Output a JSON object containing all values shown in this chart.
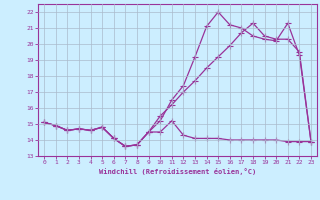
{
  "xlabel": "Windchill (Refroidissement éolien,°C)",
  "background_color": "#cceeff",
  "grid_color": "#aabbcc",
  "line_color": "#993399",
  "xlim": [
    -0.5,
    23.5
  ],
  "ylim": [
    13,
    22.5
  ],
  "xticks": [
    0,
    1,
    2,
    3,
    4,
    5,
    6,
    7,
    8,
    9,
    10,
    11,
    12,
    13,
    14,
    15,
    16,
    17,
    18,
    19,
    20,
    21,
    22,
    23
  ],
  "yticks": [
    13,
    14,
    15,
    16,
    17,
    18,
    19,
    20,
    21,
    22
  ],
  "line1_x": [
    0,
    1,
    2,
    3,
    4,
    5,
    6,
    7,
    8,
    9,
    10,
    11,
    12,
    13,
    14,
    15,
    16,
    17,
    18,
    19,
    20,
    21,
    22,
    23
  ],
  "line1_y": [
    15.1,
    14.9,
    14.6,
    14.7,
    14.6,
    14.8,
    14.1,
    13.6,
    13.7,
    14.5,
    14.5,
    15.2,
    14.3,
    14.1,
    14.1,
    14.1,
    14.0,
    14.0,
    14.0,
    14.0,
    14.0,
    13.9,
    13.9,
    13.9
  ],
  "line2_x": [
    0,
    1,
    2,
    3,
    4,
    5,
    6,
    7,
    8,
    9,
    10,
    11,
    12,
    13,
    14,
    15,
    16,
    17,
    18,
    19,
    20,
    21,
    22,
    23
  ],
  "line2_y": [
    15.1,
    14.9,
    14.6,
    14.7,
    14.6,
    14.8,
    14.1,
    13.6,
    13.7,
    14.5,
    15.2,
    16.5,
    17.4,
    19.2,
    21.1,
    22.0,
    21.2,
    21.0,
    20.5,
    20.3,
    20.2,
    21.3,
    19.3,
    13.9
  ],
  "line3_x": [
    0,
    1,
    2,
    3,
    4,
    5,
    6,
    7,
    8,
    9,
    10,
    11,
    12,
    13,
    14,
    15,
    16,
    17,
    18,
    19,
    20,
    21,
    22,
    23
  ],
  "line3_y": [
    15.1,
    14.9,
    14.6,
    14.7,
    14.6,
    14.8,
    14.1,
    13.6,
    13.7,
    14.5,
    15.5,
    16.2,
    17.0,
    17.7,
    18.5,
    19.2,
    19.9,
    20.7,
    21.3,
    20.5,
    20.3,
    20.3,
    19.5,
    13.9
  ]
}
